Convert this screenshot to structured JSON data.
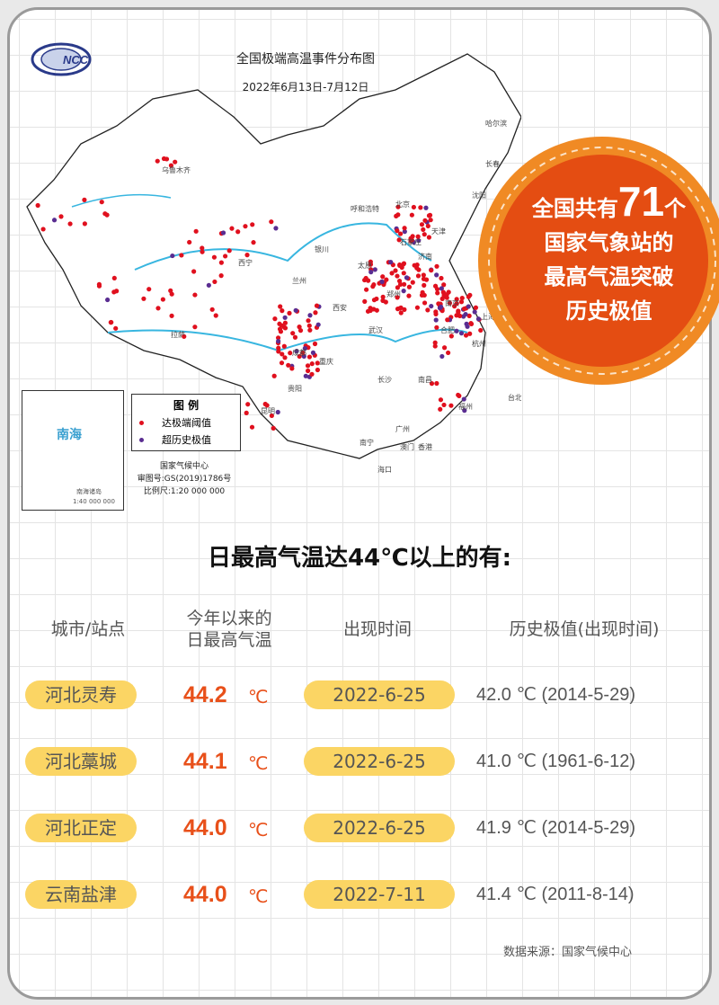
{
  "map": {
    "title": "全国极端高温事件分布图",
    "date_range": "2022年6月13日-7月12日",
    "logo_text": "NCC",
    "legend": {
      "title": "图 例",
      "items": [
        {
          "label": "达极端阈值",
          "color": "#e0101e"
        },
        {
          "label": "超历史极值",
          "color": "#5a2d91"
        }
      ]
    },
    "inset": {
      "sea_label": "南海",
      "islands_label": "南海诸岛",
      "scale": "1:40 000 000"
    },
    "publisher": "国家气候中心",
    "approval_no": "审图号:GS(2019)1786号",
    "scale": "比例尺:1:20 000 000",
    "cities": [
      "乌鲁木齐",
      "哈尔滨",
      "长春",
      "沈阳",
      "呼和浩特",
      "北京",
      "天津",
      "石家庄",
      "太原",
      "济南",
      "西宁",
      "兰州",
      "银川",
      "郑州",
      "西安",
      "拉萨",
      "成都",
      "重庆",
      "武汉",
      "合肥",
      "南京",
      "上海",
      "杭州",
      "长沙",
      "南昌",
      "贵阳",
      "昆明",
      "福州",
      "台北",
      "南宁",
      "广州",
      "澳门",
      "香港",
      "海口"
    ]
  },
  "badge": {
    "prefix": "全国共有",
    "count": "71",
    "suffix": "个",
    "line2": "国家气象站的",
    "line3": "最高气温突破",
    "line4": "历史极值",
    "color": "#e44d12",
    "ring_color": "#f08a24"
  },
  "heading": "日最高气温达44℃以上的有:",
  "table": {
    "headers": [
      "城市/站点",
      "今年以来的",
      "日最高气温",
      "出现时间",
      "历史极值(出现时间)"
    ],
    "rows": [
      {
        "station": "河北灵寿",
        "value": "44.2",
        "unit": "℃",
        "date": "2022-6-25",
        "historical": "42.0 ℃ (2014-5-29)"
      },
      {
        "station": "河北藁城",
        "value": "44.1",
        "unit": "℃",
        "date": "2022-6-25",
        "historical": "41.0 ℃ (1961-6-12)"
      },
      {
        "station": "河北正定",
        "value": "44.0",
        "unit": "℃",
        "date": "2022-6-25",
        "historical": "41.9 ℃ (2014-5-29)"
      },
      {
        "station": "云南盐津",
        "value": "44.0",
        "unit": "℃",
        "date": "2022-7-11",
        "historical": "41.4 ℃ (2011-8-14)"
      }
    ]
  },
  "source": "数据来源：国家气候中心",
  "accent": "#e8501a",
  "pill_color": "#fbd564"
}
